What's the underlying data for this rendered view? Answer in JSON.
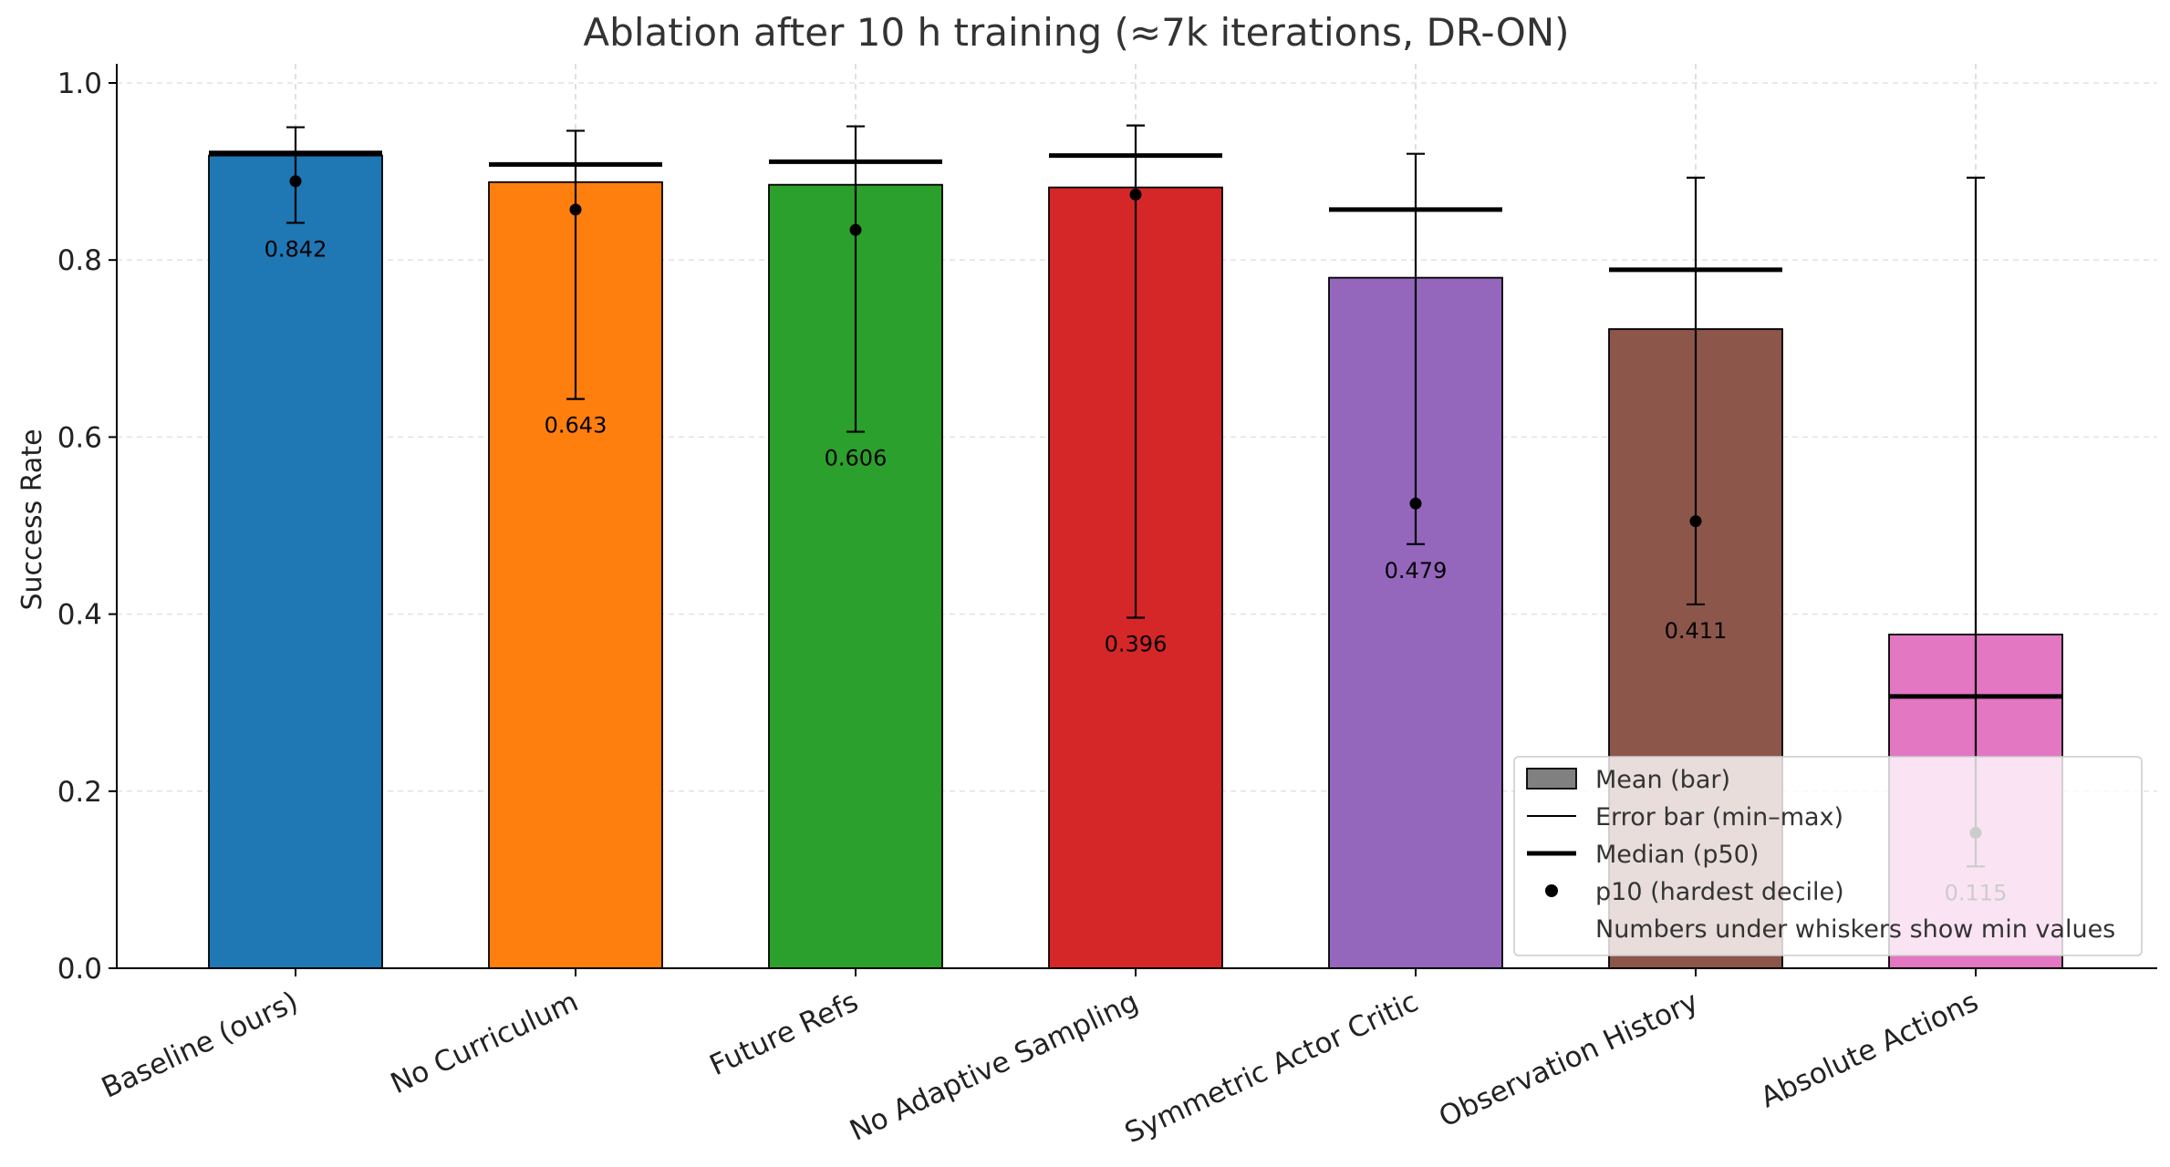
{
  "chart_data": {
    "type": "bar",
    "title": "Ablation after 10 h training (≈7k iterations, DR-ON)",
    "xlabel": "",
    "ylabel": "Success Rate",
    "ylim": [
      0,
      1.02
    ],
    "yticks": [
      "0.0",
      "0.2",
      "0.4",
      "0.6",
      "0.8",
      "1.0"
    ],
    "ytick_values": [
      0.0,
      0.2,
      0.4,
      0.6,
      0.8,
      1.0
    ],
    "grid": true,
    "legend_position": "lower-right",
    "categories": [
      "Baseline (ours)",
      "No Curriculum",
      "Future Refs",
      "No Adaptive Sampling",
      "Symmetric Actor Critic",
      "Observation History",
      "Absolute Actions"
    ],
    "colors": [
      "#1f77b4",
      "#ff7f0e",
      "#2ca02c",
      "#d62728",
      "#9467bd",
      "#8c564b",
      "#e377c2"
    ],
    "mean": [
      0.918,
      0.888,
      0.885,
      0.882,
      0.78,
      0.722,
      0.377
    ],
    "median": [
      0.921,
      0.908,
      0.911,
      0.918,
      0.857,
      0.789,
      0.307
    ],
    "p10": [
      0.889,
      0.857,
      0.834,
      0.874,
      0.525,
      0.505,
      0.153
    ],
    "min": [
      0.842,
      0.643,
      0.606,
      0.396,
      0.479,
      0.411,
      0.115
    ],
    "max": [
      0.95,
      0.946,
      0.951,
      0.952,
      0.92,
      0.893,
      0.893
    ],
    "min_labels": [
      "0.842",
      "0.643",
      "0.606",
      "0.396",
      "0.479",
      "0.411",
      "0.115"
    ],
    "legend": [
      {
        "label": "Mean (bar)",
        "kind": "patch"
      },
      {
        "label": "Error bar (min–max)",
        "kind": "thin-line"
      },
      {
        "label": "Median (p50)",
        "kind": "thick-line"
      },
      {
        "label": "p10 (hardest decile)",
        "kind": "dot"
      },
      {
        "label": "Numbers under whiskers show min values",
        "kind": "none"
      }
    ]
  }
}
